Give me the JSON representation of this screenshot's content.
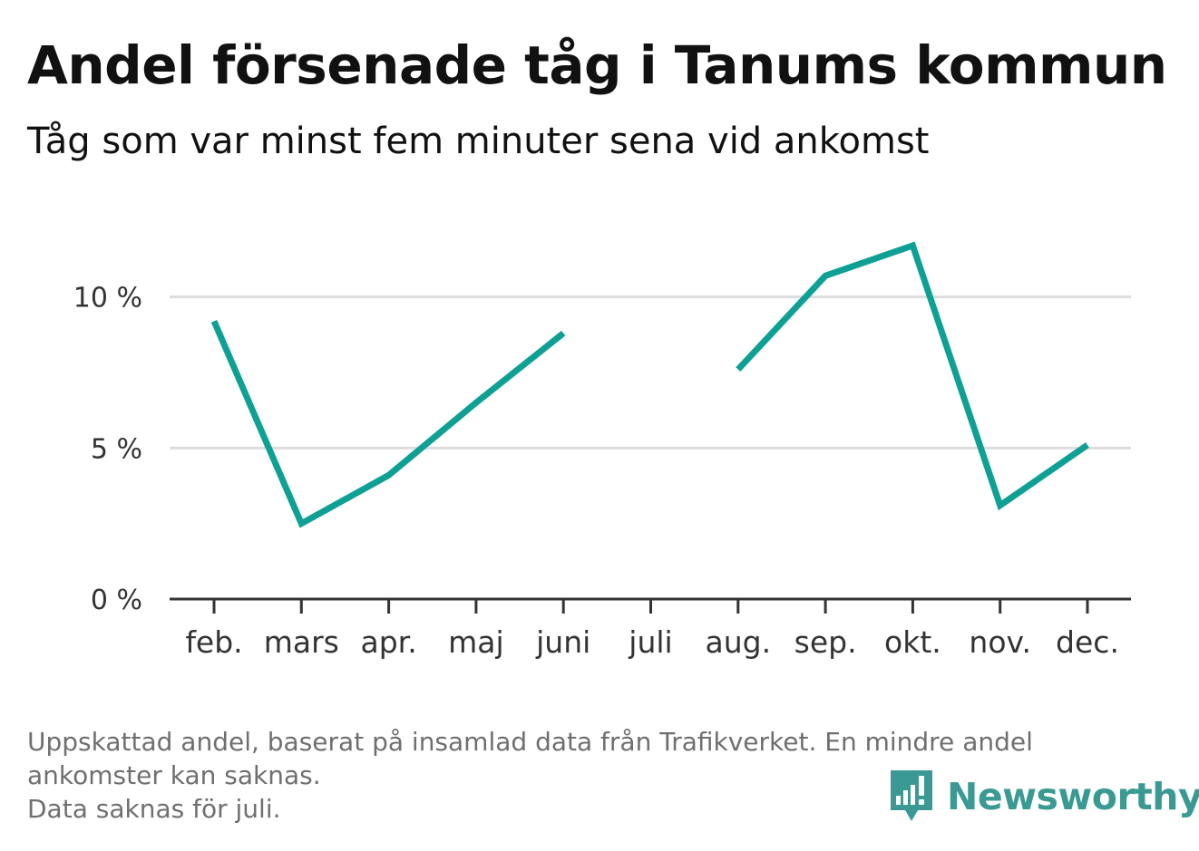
{
  "header": {
    "title": "Andel försenade tåg i Tanums kommun",
    "subtitle": "Tåg som var minst fem minuter sena vid ankomst"
  },
  "chart_data": {
    "type": "line",
    "title": "Andel försenade tåg i Tanums kommun",
    "subtitle": "Tåg som var minst fem minuter sena vid ankomst",
    "xlabel": "",
    "ylabel": "",
    "categories": [
      "feb.",
      "mars",
      "apr.",
      "maj",
      "juni",
      "juli",
      "aug.",
      "sep.",
      "okt.",
      "nov.",
      "dec."
    ],
    "series": [
      {
        "values": [
          9.2,
          2.5,
          4.1,
          6.5,
          8.8,
          null,
          7.6,
          10.7,
          11.7,
          3.1,
          5.1
        ]
      }
    ],
    "yticks": [
      0,
      5,
      10
    ],
    "ytick_labels": [
      "0 %",
      "5 %",
      "10 %"
    ],
    "ylim": [
      0,
      12
    ],
    "grid": true,
    "colors": {
      "line": "#0fa095",
      "grid": "#dddddd",
      "axis": "#333333"
    }
  },
  "footer": {
    "note_line1": "Uppskattad andel, baserat på insamlad data från Trafikverket. En mindre andel",
    "note_line2": "ankomster kan saknas.",
    "note_line3": "Data saknas för juli."
  },
  "logo": {
    "text": "Newsworthy",
    "color": "#3a9a93",
    "icon": "bar-chart-speech-bubble-icon"
  }
}
